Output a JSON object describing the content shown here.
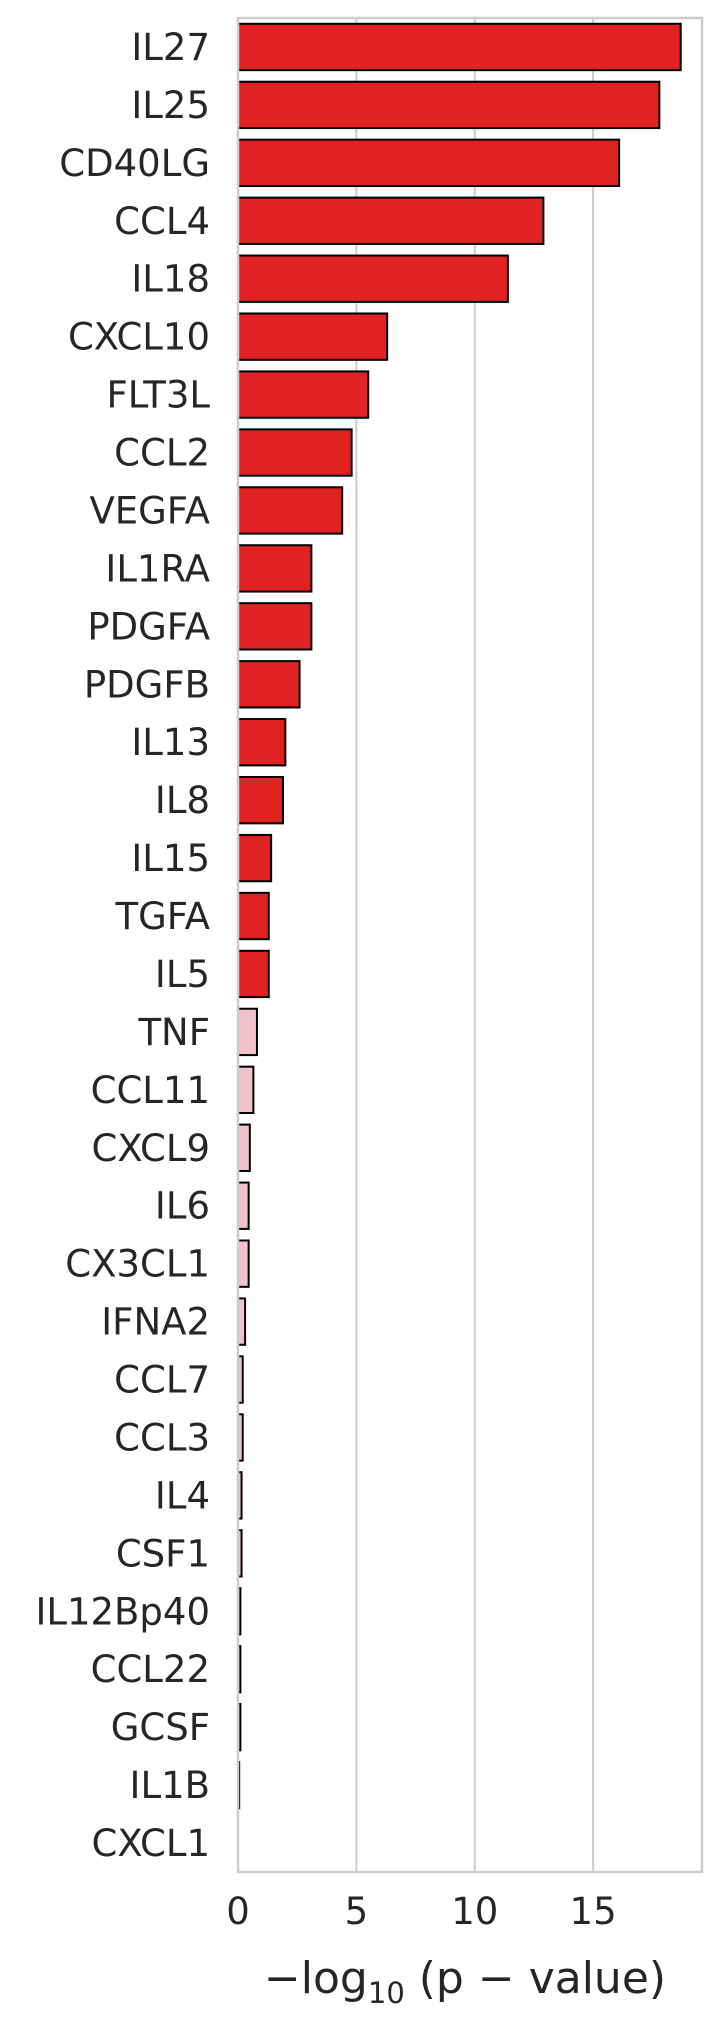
{
  "chart_data": {
    "type": "bar",
    "orientation": "horizontal",
    "categories": [
      "IL27",
      "IL25",
      "CD40LG",
      "CCL4",
      "IL18",
      "CXCL10",
      "FLT3L",
      "CCL2",
      "VEGFA",
      "IL1RA",
      "PDGFA",
      "PDGFB",
      "IL13",
      "IL8",
      "IL15",
      "TGFA",
      "IL5",
      "TNF",
      "CCL11",
      "CXCL9",
      "IL6",
      "CX3CL1",
      "IFNA2",
      "CCL7",
      "CCL3",
      "IL4",
      "CSF1",
      "IL12Bp40",
      "CCL22",
      "GCSF",
      "IL1B",
      "CXCL1"
    ],
    "values": [
      18.7,
      17.8,
      16.1,
      12.9,
      11.4,
      6.3,
      5.5,
      4.8,
      4.4,
      3.1,
      3.1,
      2.6,
      2.0,
      1.9,
      1.4,
      1.3,
      1.3,
      0.8,
      0.65,
      0.5,
      0.45,
      0.45,
      0.3,
      0.2,
      0.2,
      0.15,
      0.15,
      0.1,
      0.1,
      0.1,
      0.05,
      0.0
    ],
    "significant": [
      true,
      true,
      true,
      true,
      true,
      true,
      true,
      true,
      true,
      true,
      true,
      true,
      true,
      true,
      true,
      true,
      true,
      false,
      false,
      false,
      false,
      false,
      false,
      false,
      false,
      false,
      false,
      false,
      false,
      false,
      false,
      false
    ],
    "colors": {
      "significant": "#e12222",
      "not_significant": "#f2c2cc",
      "edge": "#000000",
      "grid": "#cccccc",
      "spine": "#cccccc",
      "text": "#262626"
    },
    "xticks": [
      "0",
      "5",
      "10",
      "15"
    ],
    "xlabel": {
      "prefix": "−log",
      "subscript": "10",
      "suffix": " (p − value)"
    },
    "xlim": [
      0,
      19.6
    ],
    "grid": "x"
  }
}
